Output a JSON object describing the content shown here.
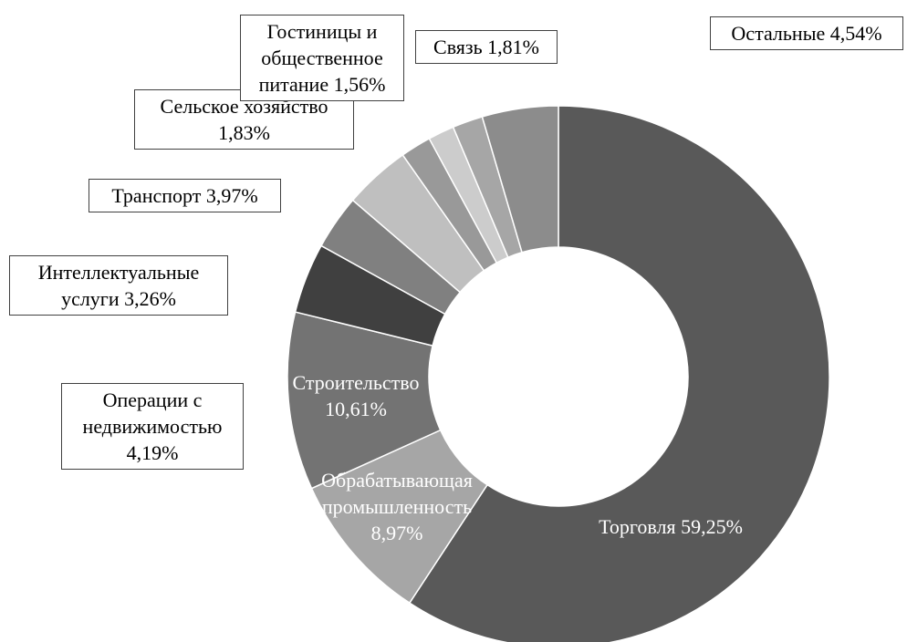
{
  "chart_data": {
    "type": "donut",
    "categories": [
      "Торговля",
      "Обрабатывающая промышленность",
      "Строительство",
      "Операции с недвижимостью",
      "Интеллектуальные услуги",
      "Транспорт",
      "Сельское хозяйство",
      "Гостиницы и общественное питание",
      "Связь",
      "Остальные"
    ],
    "values": [
      59.25,
      8.97,
      10.61,
      4.19,
      3.26,
      3.97,
      1.83,
      1.56,
      1.81,
      4.54
    ],
    "value_labels": [
      "59,25%",
      "8,97%",
      "10,61%",
      "4,19%",
      "3,26%",
      "3,97%",
      "1,83%",
      "1,56%",
      "1,81%",
      "4,54%"
    ],
    "colors": [
      "#595959",
      "#a6a6a6",
      "#737373",
      "#404040",
      "#808080",
      "#bfbfbf",
      "#999999",
      "#cccccc",
      "#a6a6a6",
      "#8c8c8c"
    ]
  }
}
